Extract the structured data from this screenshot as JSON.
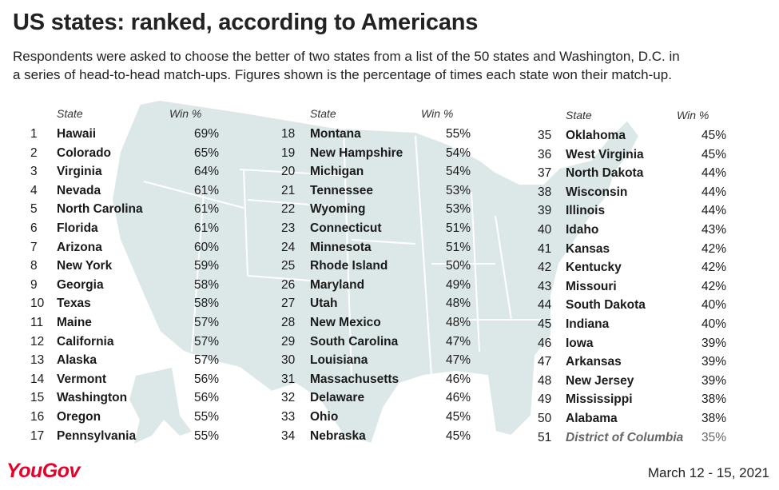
{
  "title": "US states: ranked, according to Americans",
  "subtitle_lines": [
    "Respondents were asked to choose the better of two states from a list of the 50 states and Washington, D.C. in",
    "a series of head-to-head match-ups. Figures shown is the percentage of times each state won their match-up."
  ],
  "footer": {
    "logo": "YouGov",
    "date": "March 12 - 15, 2021"
  },
  "colors": {
    "map_fill": "#dce8e8",
    "map_border": "#ffffff",
    "brand": "#e4002b",
    "dc_text": "#666666"
  },
  "chart_data": {
    "type": "table",
    "title": "US states: ranked, according to Americans",
    "columns": [
      "",
      "State",
      "Win %"
    ],
    "rows": [
      {
        "rank": 1,
        "state": "Hawaii",
        "win": "69%"
      },
      {
        "rank": 2,
        "state": "Colorado",
        "win": "65%"
      },
      {
        "rank": 3,
        "state": "Virginia",
        "win": "64%"
      },
      {
        "rank": 4,
        "state": "Nevada",
        "win": "61%"
      },
      {
        "rank": 5,
        "state": "North Carolina",
        "win": "61%"
      },
      {
        "rank": 6,
        "state": "Florida",
        "win": "61%"
      },
      {
        "rank": 7,
        "state": "Arizona",
        "win": "60%"
      },
      {
        "rank": 8,
        "state": "New York",
        "win": "59%"
      },
      {
        "rank": 9,
        "state": "Georgia",
        "win": "58%"
      },
      {
        "rank": 10,
        "state": "Texas",
        "win": "58%"
      },
      {
        "rank": 11,
        "state": "Maine",
        "win": "57%"
      },
      {
        "rank": 12,
        "state": "California",
        "win": "57%"
      },
      {
        "rank": 13,
        "state": "Alaska",
        "win": "57%"
      },
      {
        "rank": 14,
        "state": "Vermont",
        "win": "56%"
      },
      {
        "rank": 15,
        "state": "Washington",
        "win": "56%"
      },
      {
        "rank": 16,
        "state": "Oregon",
        "win": "55%"
      },
      {
        "rank": 17,
        "state": "Pennsylvania",
        "win": "55%"
      },
      {
        "rank": 18,
        "state": "Montana",
        "win": "55%"
      },
      {
        "rank": 19,
        "state": "New Hampshire",
        "win": "54%"
      },
      {
        "rank": 20,
        "state": "Michigan",
        "win": "54%"
      },
      {
        "rank": 21,
        "state": "Tennessee",
        "win": "53%"
      },
      {
        "rank": 22,
        "state": "Wyoming",
        "win": "53%"
      },
      {
        "rank": 23,
        "state": "Connecticut",
        "win": "51%"
      },
      {
        "rank": 24,
        "state": "Minnesota",
        "win": "51%"
      },
      {
        "rank": 25,
        "state": "Rhode Island",
        "win": "50%"
      },
      {
        "rank": 26,
        "state": "Maryland",
        "win": "49%"
      },
      {
        "rank": 27,
        "state": "Utah",
        "win": "48%"
      },
      {
        "rank": 28,
        "state": "New Mexico",
        "win": "48%"
      },
      {
        "rank": 29,
        "state": "South Carolina",
        "win": "47%"
      },
      {
        "rank": 30,
        "state": "Louisiana",
        "win": "47%"
      },
      {
        "rank": 31,
        "state": "Massachusetts",
        "win": "46%"
      },
      {
        "rank": 32,
        "state": "Delaware",
        "win": "46%"
      },
      {
        "rank": 33,
        "state": "Ohio",
        "win": "45%"
      },
      {
        "rank": 34,
        "state": "Nebraska",
        "win": "45%"
      },
      {
        "rank": 35,
        "state": "Oklahoma",
        "win": "45%"
      },
      {
        "rank": 36,
        "state": "West Virginia",
        "win": "45%"
      },
      {
        "rank": 37,
        "state": "North Dakota",
        "win": "44%"
      },
      {
        "rank": 38,
        "state": "Wisconsin",
        "win": "44%"
      },
      {
        "rank": 39,
        "state": "Illinois",
        "win": "44%"
      },
      {
        "rank": 40,
        "state": "Idaho",
        "win": "43%"
      },
      {
        "rank": 41,
        "state": "Kansas",
        "win": "42%"
      },
      {
        "rank": 42,
        "state": "Kentucky",
        "win": "42%"
      },
      {
        "rank": 43,
        "state": "Missouri",
        "win": "42%"
      },
      {
        "rank": 44,
        "state": "South Dakota",
        "win": "40%"
      },
      {
        "rank": 45,
        "state": "Indiana",
        "win": "40%"
      },
      {
        "rank": 46,
        "state": "Iowa",
        "win": "39%"
      },
      {
        "rank": 47,
        "state": "Arkansas",
        "win": "39%"
      },
      {
        "rank": 48,
        "state": "New Jersey",
        "win": "39%"
      },
      {
        "rank": 49,
        "state": "Mississippi",
        "win": "38%"
      },
      {
        "rank": 50,
        "state": "Alabama",
        "win": "38%"
      },
      {
        "rank": 51,
        "state": "District of Columbia",
        "win": "35%"
      }
    ]
  }
}
